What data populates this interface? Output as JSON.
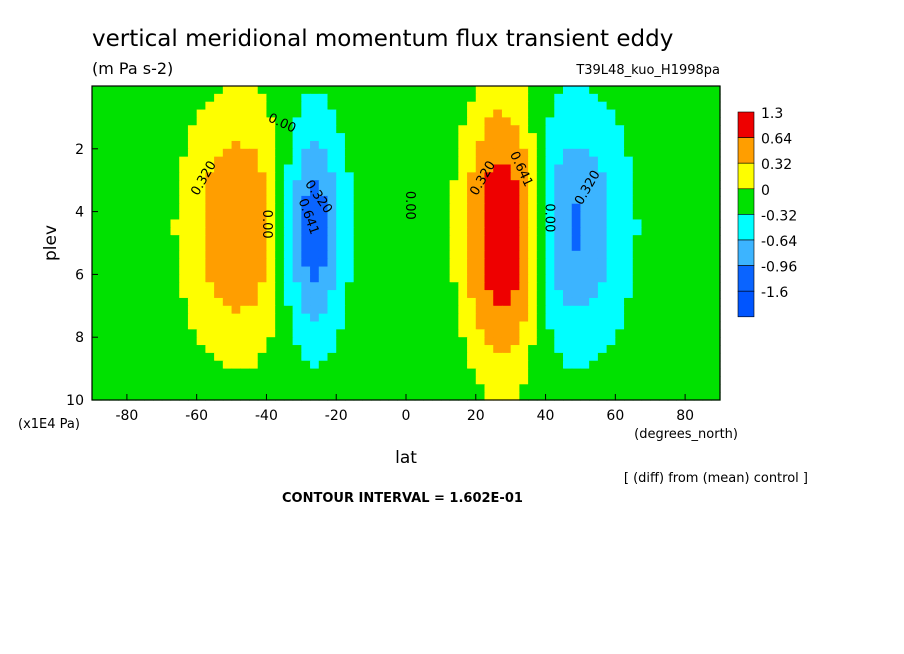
{
  "chart_data": {
    "type": "heatmap",
    "title": "vertical meridional momentum flux transient eddy",
    "units": "(m Pa s-2)",
    "run_label": "T39L48_kuo_H1998pa",
    "xlabel": "lat",
    "x_units": "(degrees_north)",
    "ylabel": "plev",
    "y_units": "(x1E4 Pa)",
    "xlim": [
      -90,
      90
    ],
    "ylim": [
      10,
      0
    ],
    "x_ticks": [
      "-80",
      "-60",
      "-40",
      "-20",
      "0",
      "20",
      "40",
      "60",
      "80"
    ],
    "y_ticks": [
      "2",
      "4",
      "6",
      "8",
      "10"
    ],
    "colorbar": {
      "labels": [
        "1.3",
        "0.64",
        "0.32",
        "0",
        "-0.32",
        "-0.64",
        "-0.96",
        "-1.6"
      ],
      "colors": [
        "#ee0000",
        "#ff9e00",
        "#fefe00",
        "#00e100",
        "#00ffff",
        "#3cb4ff",
        "#0a64ff",
        "#0055ff"
      ]
    },
    "features": [
      {
        "lat": -48,
        "plev": 4.5,
        "value": 0.85,
        "sx": 10,
        "sy": 2.5
      },
      {
        "lat": -27,
        "plev": 4.6,
        "value": -1.1,
        "sx": 6,
        "sy": 2.3
      },
      {
        "lat": 28,
        "plev": 4.7,
        "value": 1.55,
        "sx": 7,
        "sy": 2.6
      },
      {
        "lat": 48,
        "plev": 4.5,
        "value": -0.85,
        "sx": 10,
        "sy": 2.5
      }
    ],
    "contour_labels": [
      "0.320",
      "0.00",
      "0.320",
      "0.641",
      "0.00",
      "0.00",
      "0.320",
      "0.641",
      "0.00",
      "0.320"
    ],
    "contour_interval_text": "CONTOUR INTERVAL = 1.602E-01",
    "diff_note": "[ (diff) from (mean) control ]"
  }
}
